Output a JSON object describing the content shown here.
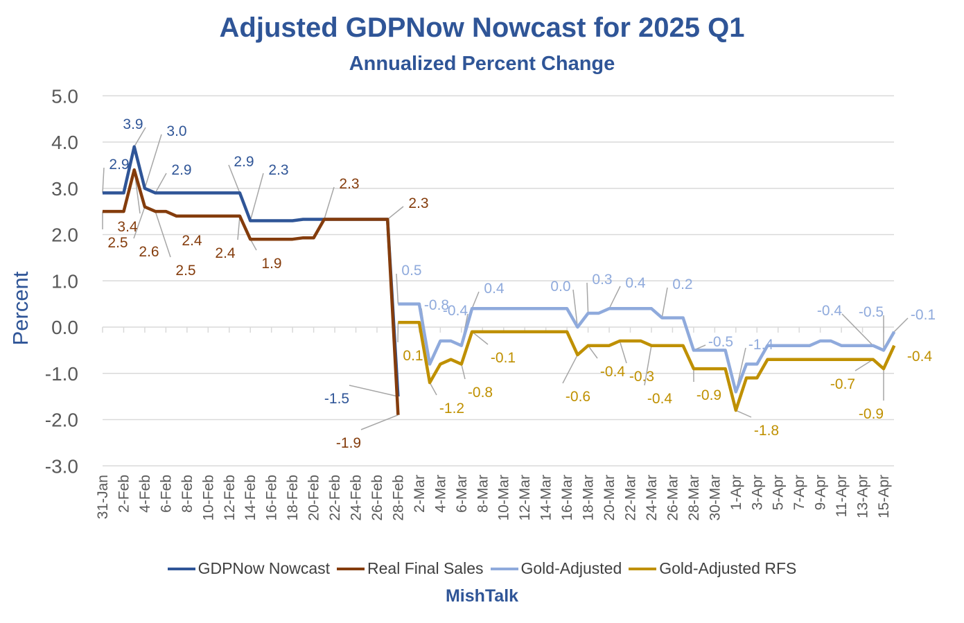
{
  "chart_data": {
    "type": "line",
    "title": "Adjusted GDPNow Nowcast for 2025 Q1",
    "subtitle": "Annualized Percent Change",
    "ylabel": "Percent",
    "xlabel": "",
    "ylim": [
      -3.0,
      5.0
    ],
    "y_ticks": [
      "5.0",
      "4.0",
      "3.0",
      "2.0",
      "1.0",
      "0.0",
      "-1.0",
      "-2.0",
      "-3.0"
    ],
    "x_range": [
      "31-Jan",
      "16-Apr"
    ],
    "x_tick_labels": [
      "31-Jan",
      "2-Feb",
      "4-Feb",
      "6-Feb",
      "8-Feb",
      "10-Feb",
      "12-Feb",
      "14-Feb",
      "16-Feb",
      "18-Feb",
      "20-Feb",
      "22-Feb",
      "24-Feb",
      "26-Feb",
      "28-Feb",
      "2-Mar",
      "4-Mar",
      "6-Mar",
      "8-Mar",
      "10-Mar",
      "12-Mar",
      "14-Mar",
      "16-Mar",
      "18-Mar",
      "20-Mar",
      "22-Mar",
      "24-Mar",
      "26-Mar",
      "28-Mar",
      "30-Mar",
      "1-Apr",
      "3-Apr",
      "5-Apr",
      "7-Apr",
      "9-Apr",
      "11-Apr",
      "13-Apr",
      "15-Apr"
    ],
    "grid": true,
    "legend_position": "bottom",
    "source": "MishTalk",
    "series": [
      {
        "name": "GDPNow Nowcast",
        "color": "#2F5597",
        "points": [
          [
            "31-Jan",
            2.9
          ],
          [
            "2-Feb",
            2.9
          ],
          [
            "3-Feb",
            3.9
          ],
          [
            "4-Feb",
            3.0
          ],
          [
            "5-Feb",
            2.9
          ],
          [
            "13-Feb",
            2.9
          ],
          [
            "14-Feb",
            2.3
          ],
          [
            "18-Feb",
            2.3
          ],
          [
            "19-Feb",
            2.33
          ],
          [
            "27-Feb",
            2.33
          ],
          [
            "28-Feb",
            -1.5
          ]
        ]
      },
      {
        "name": "Real Final Sales",
        "color": "#843C0C",
        "points": [
          [
            "31-Jan",
            2.5
          ],
          [
            "2-Feb",
            2.5
          ],
          [
            "3-Feb",
            3.4
          ],
          [
            "4-Feb",
            2.6
          ],
          [
            "5-Feb",
            2.5
          ],
          [
            "6-Feb",
            2.5
          ],
          [
            "7-Feb",
            2.4
          ],
          [
            "13-Feb",
            2.4
          ],
          [
            "14-Feb",
            1.9
          ],
          [
            "18-Feb",
            1.9
          ],
          [
            "19-Feb",
            1.93
          ],
          [
            "20-Feb",
            1.93
          ],
          [
            "21-Feb",
            2.33
          ],
          [
            "27-Feb",
            2.33
          ],
          [
            "28-Feb",
            -1.9
          ]
        ]
      },
      {
        "name": "Gold-Adjusted",
        "color": "#8FAADC",
        "points": [
          [
            "28-Feb",
            0.5
          ],
          [
            "2-Mar",
            0.5
          ],
          [
            "3-Mar",
            -0.8
          ],
          [
            "4-Mar",
            -0.3
          ],
          [
            "5-Mar",
            -0.3
          ],
          [
            "6-Mar",
            -0.4
          ],
          [
            "7-Mar",
            0.4
          ],
          [
            "16-Mar",
            0.4
          ],
          [
            "17-Mar",
            0.0
          ],
          [
            "18-Mar",
            0.3
          ],
          [
            "19-Mar",
            0.3
          ],
          [
            "20-Mar",
            0.4
          ],
          [
            "24-Mar",
            0.4
          ],
          [
            "25-Mar",
            0.2
          ],
          [
            "27-Mar",
            0.2
          ],
          [
            "28-Mar",
            -0.5
          ],
          [
            "31-Mar",
            -0.5
          ],
          [
            "1-Apr",
            -1.4
          ],
          [
            "2-Apr",
            -0.8
          ],
          [
            "3-Apr",
            -0.8
          ],
          [
            "4-Apr",
            -0.4
          ],
          [
            "8-Apr",
            -0.4
          ],
          [
            "9-Apr",
            -0.3
          ],
          [
            "10-Apr",
            -0.3
          ],
          [
            "11-Apr",
            -0.4
          ],
          [
            "14-Apr",
            -0.4
          ],
          [
            "15-Apr",
            -0.5
          ],
          [
            "16-Apr",
            -0.1
          ]
        ]
      },
      {
        "name": "Gold-Adjusted RFS",
        "color": "#BF9000",
        "points": [
          [
            "28-Feb",
            0.1
          ],
          [
            "2-Mar",
            0.1
          ],
          [
            "3-Mar",
            -1.2
          ],
          [
            "4-Mar",
            -0.8
          ],
          [
            "5-Mar",
            -0.7
          ],
          [
            "6-Mar",
            -0.8
          ],
          [
            "7-Mar",
            -0.1
          ],
          [
            "16-Mar",
            -0.1
          ],
          [
            "17-Mar",
            -0.6
          ],
          [
            "18-Mar",
            -0.4
          ],
          [
            "20-Mar",
            -0.4
          ],
          [
            "21-Mar",
            -0.3
          ],
          [
            "23-Mar",
            -0.3
          ],
          [
            "24-Mar",
            -0.4
          ],
          [
            "27-Mar",
            -0.4
          ],
          [
            "28-Mar",
            -0.9
          ],
          [
            "31-Mar",
            -0.9
          ],
          [
            "1-Apr",
            -1.8
          ],
          [
            "2-Apr",
            -1.1
          ],
          [
            "3-Apr",
            -1.1
          ],
          [
            "4-Apr",
            -0.7
          ],
          [
            "14-Apr",
            -0.7
          ],
          [
            "15-Apr",
            -0.9
          ],
          [
            "16-Apr",
            -0.4
          ]
        ]
      }
    ],
    "data_labels": [
      {
        "series": 0,
        "date": "31-Jan",
        "text": "2.9"
      },
      {
        "series": 0,
        "date": "3-Feb",
        "text": "3.9"
      },
      {
        "series": 0,
        "date": "4-Feb",
        "text": "3.0"
      },
      {
        "series": 0,
        "date": "5-Feb",
        "text": "2.9"
      },
      {
        "series": 0,
        "date": "13-Feb",
        "text": "2.9"
      },
      {
        "series": 0,
        "date": "14-Feb",
        "text": "2.3"
      },
      {
        "series": 0,
        "date": "28-Feb",
        "text": "-1.5"
      },
      {
        "series": 1,
        "date": "3-Feb",
        "text": "3.4"
      },
      {
        "series": 1,
        "date": "31-Jan",
        "text": "2.5"
      },
      {
        "series": 1,
        "date": "4-Feb",
        "text": "2.6"
      },
      {
        "series": 1,
        "date": "5-Feb",
        "text": "2.5"
      },
      {
        "series": 1,
        "date": "7-Feb",
        "text": "2.4"
      },
      {
        "series": 1,
        "date": "13-Feb",
        "text": "2.4"
      },
      {
        "series": 1,
        "date": "14-Feb",
        "text": "1.9"
      },
      {
        "series": 1,
        "date": "21-Feb",
        "text": "2.3"
      },
      {
        "series": 1,
        "date": "27-Feb",
        "text": "2.3"
      },
      {
        "series": 1,
        "date": "28-Feb",
        "text": "-1.9"
      },
      {
        "series": 2,
        "date": "28-Feb",
        "text": "0.5"
      },
      {
        "series": 2,
        "date": "3-Mar",
        "text": "-0.8"
      },
      {
        "series": 2,
        "date": "6-Mar",
        "text": "-0.4"
      },
      {
        "series": 2,
        "date": "7-Mar",
        "text": "0.4"
      },
      {
        "series": 2,
        "date": "17-Mar",
        "text": "0.0"
      },
      {
        "series": 2,
        "date": "18-Mar",
        "text": "0.3"
      },
      {
        "series": 2,
        "date": "20-Mar",
        "text": "0.4"
      },
      {
        "series": 2,
        "date": "25-Mar",
        "text": "0.2"
      },
      {
        "series": 2,
        "date": "28-Mar",
        "text": "-0.5"
      },
      {
        "series": 2,
        "date": "1-Apr",
        "text": "-1.4"
      },
      {
        "series": 2,
        "date": "14-Apr",
        "text": "-0.4"
      },
      {
        "series": 2,
        "date": "15-Apr",
        "text": "-0.5"
      },
      {
        "series": 2,
        "date": "16-Apr",
        "text": "-0.1"
      },
      {
        "series": 3,
        "date": "28-Feb",
        "text": "0.1"
      },
      {
        "series": 3,
        "date": "3-Mar",
        "text": "-1.2"
      },
      {
        "series": 3,
        "date": "6-Mar",
        "text": "-0.8"
      },
      {
        "series": 3,
        "date": "7-Mar",
        "text": "-0.1"
      },
      {
        "series": 3,
        "date": "17-Mar",
        "text": "-0.6"
      },
      {
        "series": 3,
        "date": "18-Mar",
        "text": "-0.4"
      },
      {
        "series": 3,
        "date": "21-Mar",
        "text": "-0.3"
      },
      {
        "series": 3,
        "date": "24-Mar",
        "text": "-0.4"
      },
      {
        "series": 3,
        "date": "28-Mar",
        "text": "-0.9"
      },
      {
        "series": 3,
        "date": "1-Apr",
        "text": "-1.8"
      },
      {
        "series": 3,
        "date": "14-Apr",
        "text": "-0.7"
      },
      {
        "series": 3,
        "date": "15-Apr",
        "text": "-0.9"
      },
      {
        "series": 3,
        "date": "16-Apr",
        "text": "-0.4"
      }
    ]
  }
}
